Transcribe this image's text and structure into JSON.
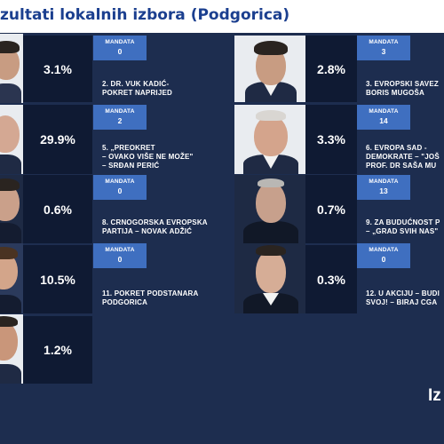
{
  "title": "zultati lokalnih izbora (Podgorica)",
  "mandata_label": "MANDATA",
  "brand": "Iz",
  "rows": [
    {
      "left": {
        "percent": "3.1%"
      },
      "party": {
        "mandata": "0",
        "line1": "2. DR. VUK KADIĆ-",
        "line2": "POKRET NAPRIJED",
        "line3": ""
      },
      "right": {
        "percent": "2.8%"
      },
      "party_right": {
        "mandata": "3",
        "line1": "3. EVROPSKI SAVEZ",
        "line2": "BORIS MUGOŠA",
        "line3": ""
      }
    },
    {
      "left": {
        "percent": "29.9%"
      },
      "party": {
        "mandata": "2",
        "line1": "5. „PREOKRET",
        "line2": "– OVAKO VIŠE NE MOŽE\"",
        "line3": "– SRĐAN PERIĆ"
      },
      "right": {
        "percent": "3.3%"
      },
      "party_right": {
        "mandata": "14",
        "line1": "6. EVROPA SAD -",
        "line2": "DEMOKRATE – \"JOŠ",
        "line3": "PROF. DR SAŠA MU"
      }
    },
    {
      "left": {
        "percent": "0.6%"
      },
      "party": {
        "mandata": "0",
        "line1": "8. CRNOGORSKA EVROPSKA",
        "line2": "PARTIJA – NOVAK ADŽIĆ",
        "line3": ""
      },
      "right": {
        "percent": "0.7%"
      },
      "party_right": {
        "mandata": "13",
        "line1": "9. ZA BUDUĆNOST P",
        "line2": "– „GRAD SVIH NAS\"",
        "line3": ""
      }
    },
    {
      "left": {
        "percent": "10.5%"
      },
      "party": {
        "mandata": "0",
        "line1": "11. POKRET PODSTANARA",
        "line2": "PODGORICA",
        "line3": ""
      },
      "right": {
        "percent": "0.3%"
      },
      "party_right": {
        "mandata": "0",
        "line1": "12. U AKCIJU – BUDI",
        "line2": "SVOJ! – BIRAJ CGA",
        "line3": ""
      }
    },
    {
      "left": {
        "percent": "1.2%"
      }
    }
  ]
}
